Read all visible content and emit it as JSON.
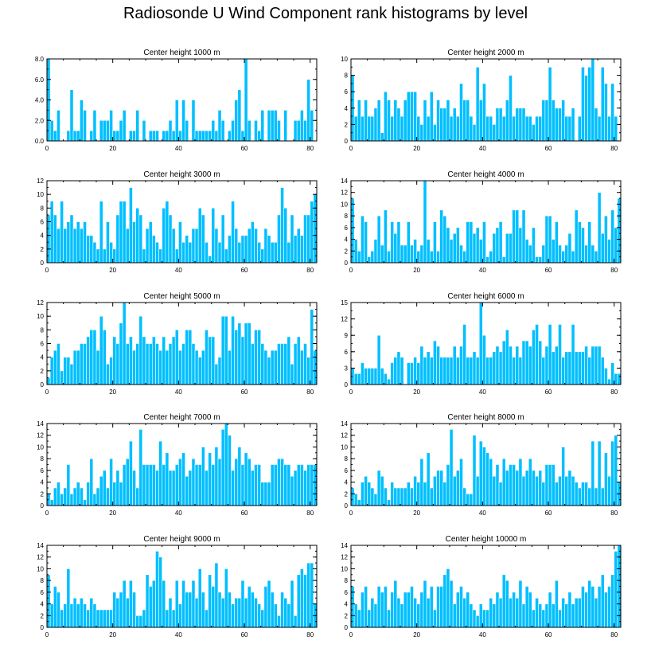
{
  "title": "Radiosonde U Wind Component rank histograms by level",
  "colors": {
    "bar": "#00bfff",
    "bar_edge": "#ffffff",
    "axis": "#000000"
  },
  "chart_data": [
    {
      "type": "bar",
      "title": "Center height 1000 m",
      "xlim": [
        0,
        82
      ],
      "ylim": [
        0,
        8
      ],
      "xticks": [
        0,
        20,
        40,
        60,
        80
      ],
      "xtick_labels": [
        "0",
        "20",
        "40",
        "60",
        "80"
      ],
      "yticks": [
        0,
        2,
        4,
        6,
        8
      ],
      "ytick_labels": [
        "0.0",
        "2.0",
        "4.0",
        "6.0",
        "8.0"
      ],
      "values": [
        8,
        2,
        1,
        3,
        0,
        0,
        1,
        5,
        1,
        1,
        4,
        3,
        0,
        1,
        3,
        0,
        2,
        2,
        2,
        3,
        1,
        1,
        2,
        3,
        0,
        1,
        1,
        3,
        0,
        2,
        0,
        1,
        1,
        1,
        0,
        1,
        1,
        2,
        1,
        4,
        1,
        4,
        2,
        0,
        4,
        1,
        1,
        1,
        1,
        1,
        2,
        1,
        3,
        2,
        0,
        1,
        2,
        4,
        5,
        1,
        8,
        2,
        0,
        2,
        1,
        3,
        0,
        3,
        3,
        3,
        2,
        0,
        3,
        0,
        0,
        2,
        2,
        3,
        2,
        6,
        3,
        0
      ]
    },
    {
      "type": "bar",
      "title": "Center height 2000 m",
      "xlim": [
        0,
        82
      ],
      "ylim": [
        0,
        10
      ],
      "xticks": [
        0,
        20,
        40,
        60,
        80
      ],
      "xtick_labels": [
        "0",
        "20",
        "40",
        "60",
        "80"
      ],
      "yticks": [
        0,
        2,
        4,
        6,
        8,
        10
      ],
      "ytick_labels": [
        "0",
        "2",
        "4",
        "6",
        "8",
        "10"
      ],
      "values": [
        8,
        3,
        5,
        3,
        5,
        3,
        3,
        4,
        5,
        1,
        6,
        5,
        3,
        5,
        4,
        3,
        5,
        6,
        6,
        6,
        3,
        2,
        5,
        3,
        6,
        2,
        5,
        4,
        4,
        5,
        3,
        4,
        3,
        7,
        5,
        5,
        3,
        2,
        9,
        5,
        7,
        3,
        3,
        2,
        4,
        4,
        3,
        5,
        8,
        3,
        4,
        4,
        4,
        3,
        3,
        2,
        3,
        3,
        5,
        5,
        9,
        5,
        4,
        4,
        5,
        3,
        3,
        4,
        0,
        3,
        9,
        8,
        9,
        10,
        4,
        3,
        9,
        7,
        3,
        7,
        3,
        0
      ]
    },
    {
      "type": "bar",
      "title": "Center height 3000 m",
      "xlim": [
        0,
        82
      ],
      "ylim": [
        0,
        12
      ],
      "xticks": [
        0,
        20,
        40,
        60,
        80
      ],
      "xtick_labels": [
        "0",
        "20",
        "40",
        "60",
        "80"
      ],
      "yticks": [
        0,
        2,
        4,
        6,
        8,
        10,
        12
      ],
      "ytick_labels": [
        "0",
        "2",
        "4",
        "6",
        "8",
        "10",
        "12"
      ],
      "values": [
        7,
        9,
        7,
        5,
        9,
        5,
        6,
        7,
        5,
        6,
        5,
        6,
        4,
        4,
        3,
        2,
        9,
        2,
        6,
        3,
        2,
        7,
        9,
        9,
        5,
        11,
        6,
        8,
        7,
        2,
        5,
        6,
        4,
        3,
        2,
        8,
        9,
        7,
        5,
        2,
        6,
        3,
        4,
        3,
        5,
        5,
        8,
        7,
        3,
        1,
        8,
        5,
        3,
        7,
        2,
        4,
        9,
        5,
        3,
        4,
        4,
        5,
        6,
        5,
        3,
        2,
        5,
        4,
        3,
        3,
        7,
        11,
        8,
        3,
        7,
        4,
        5,
        4,
        7,
        7,
        9,
        10
      ]
    },
    {
      "type": "bar",
      "title": "Center height 4000 m",
      "xlim": [
        0,
        82
      ],
      "ylim": [
        0,
        14
      ],
      "xticks": [
        0,
        20,
        40,
        60,
        80
      ],
      "xtick_labels": [
        "0",
        "20",
        "40",
        "60",
        "80"
      ],
      "yticks": [
        0,
        2,
        4,
        6,
        8,
        10,
        12,
        14
      ],
      "ytick_labels": [
        "0",
        "2",
        "4",
        "6",
        "8",
        "10",
        "12",
        "14"
      ],
      "values": [
        11,
        4,
        2,
        8,
        7,
        1,
        2,
        4,
        8,
        3,
        9,
        2,
        7,
        5,
        7,
        3,
        3,
        7,
        3,
        4,
        2,
        3,
        14,
        4,
        2,
        7,
        2,
        9,
        8,
        6,
        4,
        5,
        6,
        3,
        2,
        7,
        7,
        5,
        6,
        4,
        7,
        1,
        2,
        5,
        6,
        7,
        1,
        5,
        5,
        9,
        9,
        6,
        9,
        4,
        3,
        6,
        1,
        1,
        3,
        8,
        8,
        4,
        7,
        3,
        2,
        3,
        5,
        2,
        9,
        7,
        6,
        3,
        7,
        3,
        2,
        12,
        5,
        8,
        4,
        9,
        6,
        11
      ]
    },
    {
      "type": "bar",
      "title": "Center height 5000 m",
      "xlim": [
        0,
        82
      ],
      "ylim": [
        0,
        12
      ],
      "xticks": [
        0,
        20,
        40,
        60,
        80
      ],
      "xtick_labels": [
        "0",
        "20",
        "40",
        "60",
        "80"
      ],
      "yticks": [
        0,
        2,
        4,
        6,
        8,
        10,
        12
      ],
      "ytick_labels": [
        "0",
        "2",
        "4",
        "6",
        "8",
        "10",
        "12"
      ],
      "values": [
        1,
        4,
        5,
        6,
        2,
        4,
        4,
        3,
        5,
        5,
        6,
        6,
        7,
        8,
        8,
        5,
        10,
        8,
        3,
        4,
        7,
        6,
        9,
        12,
        6,
        7,
        5,
        6,
        10,
        7,
        6,
        6,
        7,
        6,
        5,
        7,
        5,
        6,
        7,
        8,
        5,
        6,
        8,
        8,
        6,
        5,
        4,
        5,
        8,
        7,
        7,
        3,
        4,
        10,
        10,
        5,
        10,
        8,
        9,
        7,
        9,
        9,
        6,
        8,
        8,
        6,
        5,
        4,
        5,
        5,
        6,
        6,
        6,
        7,
        3,
        6,
        7,
        5,
        6,
        4,
        11,
        5
      ]
    },
    {
      "type": "bar",
      "title": "Center height 6000 m",
      "xlim": [
        0,
        82
      ],
      "ylim": [
        0,
        15
      ],
      "xticks": [
        0,
        20,
        40,
        60,
        80
      ],
      "xtick_labels": [
        "0",
        "20",
        "40",
        "60",
        "80"
      ],
      "yticks": [
        0,
        3,
        6,
        9,
        12,
        15
      ],
      "ytick_labels": [
        "0",
        "3",
        "6",
        "9",
        "12",
        "15"
      ],
      "values": [
        3,
        2,
        2,
        4,
        3,
        3,
        3,
        3,
        9,
        3,
        2,
        1,
        4,
        5,
        6,
        5,
        0,
        4,
        4,
        5,
        4,
        7,
        5,
        6,
        5,
        8,
        7,
        5,
        5,
        5,
        5,
        7,
        5,
        7,
        11,
        5,
        5,
        6,
        5,
        15,
        9,
        5,
        5,
        6,
        7,
        6,
        8,
        10,
        7,
        5,
        7,
        5,
        8,
        8,
        7,
        10,
        11,
        8,
        5,
        7,
        11,
        6,
        7,
        11,
        5,
        6,
        6,
        11,
        6,
        6,
        6,
        7,
        5,
        7,
        7,
        7,
        5,
        3,
        1,
        4,
        2,
        2
      ]
    },
    {
      "type": "bar",
      "title": "Center height 7000 m",
      "xlim": [
        0,
        82
      ],
      "ylim": [
        0,
        14
      ],
      "xticks": [
        0,
        20,
        40,
        60,
        80
      ],
      "xtick_labels": [
        "0",
        "20",
        "40",
        "60",
        "80"
      ],
      "yticks": [
        0,
        2,
        4,
        6,
        8,
        10,
        12,
        14
      ],
      "ytick_labels": [
        "0",
        "2",
        "4",
        "6",
        "8",
        "10",
        "12",
        "14"
      ],
      "values": [
        2,
        1,
        3,
        4,
        2,
        3,
        7,
        2,
        3,
        4,
        3,
        1,
        4,
        8,
        2,
        3,
        5,
        6,
        3,
        8,
        4,
        6,
        4,
        7,
        8,
        11,
        6,
        3,
        13,
        7,
        7,
        7,
        7,
        6,
        11,
        7,
        9,
        6,
        6,
        7,
        8,
        9,
        5,
        6,
        8,
        7,
        7,
        10,
        6,
        9,
        7,
        10,
        8,
        13,
        14,
        12,
        6,
        8,
        10,
        7,
        9,
        8,
        6,
        7,
        7,
        4,
        4,
        4,
        7,
        7,
        8,
        8,
        7,
        7,
        5,
        6,
        7,
        7,
        6,
        7,
        7,
        7
      ]
    },
    {
      "type": "bar",
      "title": "Center height 8000 m",
      "xlim": [
        0,
        82
      ],
      "ylim": [
        0,
        14
      ],
      "xticks": [
        0,
        20,
        40,
        60,
        80
      ],
      "xtick_labels": [
        "0",
        "20",
        "40",
        "60",
        "80"
      ],
      "yticks": [
        0,
        2,
        4,
        6,
        8,
        10,
        12,
        14
      ],
      "ytick_labels": [
        "0",
        "2",
        "4",
        "6",
        "8",
        "10",
        "12",
        "14"
      ],
      "values": [
        3,
        2,
        1,
        4,
        5,
        4,
        3,
        2,
        6,
        5,
        3,
        1,
        4,
        3,
        3,
        3,
        3,
        4,
        3,
        5,
        4,
        8,
        4,
        9,
        3,
        5,
        6,
        6,
        4,
        7,
        13,
        5,
        6,
        8,
        3,
        2,
        2,
        12,
        5,
        11,
        10,
        9,
        8,
        5,
        7,
        4,
        8,
        6,
        7,
        7,
        6,
        8,
        5,
        6,
        8,
        6,
        5,
        6,
        4,
        7,
        7,
        7,
        4,
        5,
        10,
        5,
        6,
        5,
        4,
        3,
        4,
        4,
        3,
        11,
        3,
        11,
        3,
        9,
        5,
        11,
        12,
        4
      ]
    },
    {
      "type": "bar",
      "title": "Center height 9000 m",
      "xlim": [
        0,
        82
      ],
      "ylim": [
        0,
        14
      ],
      "xticks": [
        0,
        20,
        40,
        60,
        80
      ],
      "xtick_labels": [
        "0",
        "20",
        "40",
        "60",
        "80"
      ],
      "yticks": [
        0,
        2,
        4,
        6,
        8,
        10,
        12,
        14
      ],
      "ytick_labels": [
        "0",
        "2",
        "4",
        "6",
        "8",
        "10",
        "12",
        "14"
      ],
      "values": [
        9,
        4,
        7,
        6,
        3,
        4,
        10,
        4,
        5,
        4,
        5,
        4,
        3,
        5,
        4,
        3,
        3,
        3,
        3,
        3,
        6,
        5,
        6,
        8,
        5,
        8,
        6,
        2,
        2,
        3,
        9,
        7,
        8,
        13,
        12,
        8,
        3,
        5,
        3,
        8,
        4,
        8,
        6,
        6,
        8,
        5,
        10,
        6,
        3,
        9,
        7,
        11,
        6,
        5,
        10,
        6,
        4,
        5,
        5,
        8,
        5,
        7,
        6,
        5,
        4,
        3,
        7,
        8,
        6,
        4,
        2,
        6,
        5,
        4,
        8,
        2,
        9,
        10,
        9,
        11,
        11,
        4
      ]
    },
    {
      "type": "bar",
      "title": "Center height 10000 m",
      "xlim": [
        0,
        82
      ],
      "ylim": [
        0,
        14
      ],
      "xticks": [
        0,
        20,
        40,
        60,
        80
      ],
      "xtick_labels": [
        "0",
        "20",
        "40",
        "60",
        "80"
      ],
      "yticks": [
        0,
        2,
        4,
        6,
        8,
        10,
        12,
        14
      ],
      "ytick_labels": [
        "0",
        "2",
        "4",
        "6",
        "8",
        "10",
        "12",
        "14"
      ],
      "values": [
        7,
        4,
        3,
        6,
        7,
        3,
        5,
        4,
        7,
        6,
        7,
        3,
        6,
        8,
        5,
        4,
        6,
        6,
        7,
        5,
        4,
        6,
        8,
        5,
        7,
        3,
        7,
        7,
        9,
        10,
        8,
        4,
        6,
        7,
        5,
        6,
        4,
        3,
        2,
        4,
        3,
        3,
        5,
        4,
        6,
        5,
        9,
        8,
        5,
        6,
        5,
        8,
        4,
        7,
        6,
        3,
        5,
        4,
        3,
        4,
        6,
        4,
        8,
        3,
        5,
        4,
        6,
        4,
        5,
        5,
        7,
        6,
        8,
        7,
        5,
        7,
        9,
        6,
        7,
        9,
        13,
        14
      ]
    }
  ]
}
